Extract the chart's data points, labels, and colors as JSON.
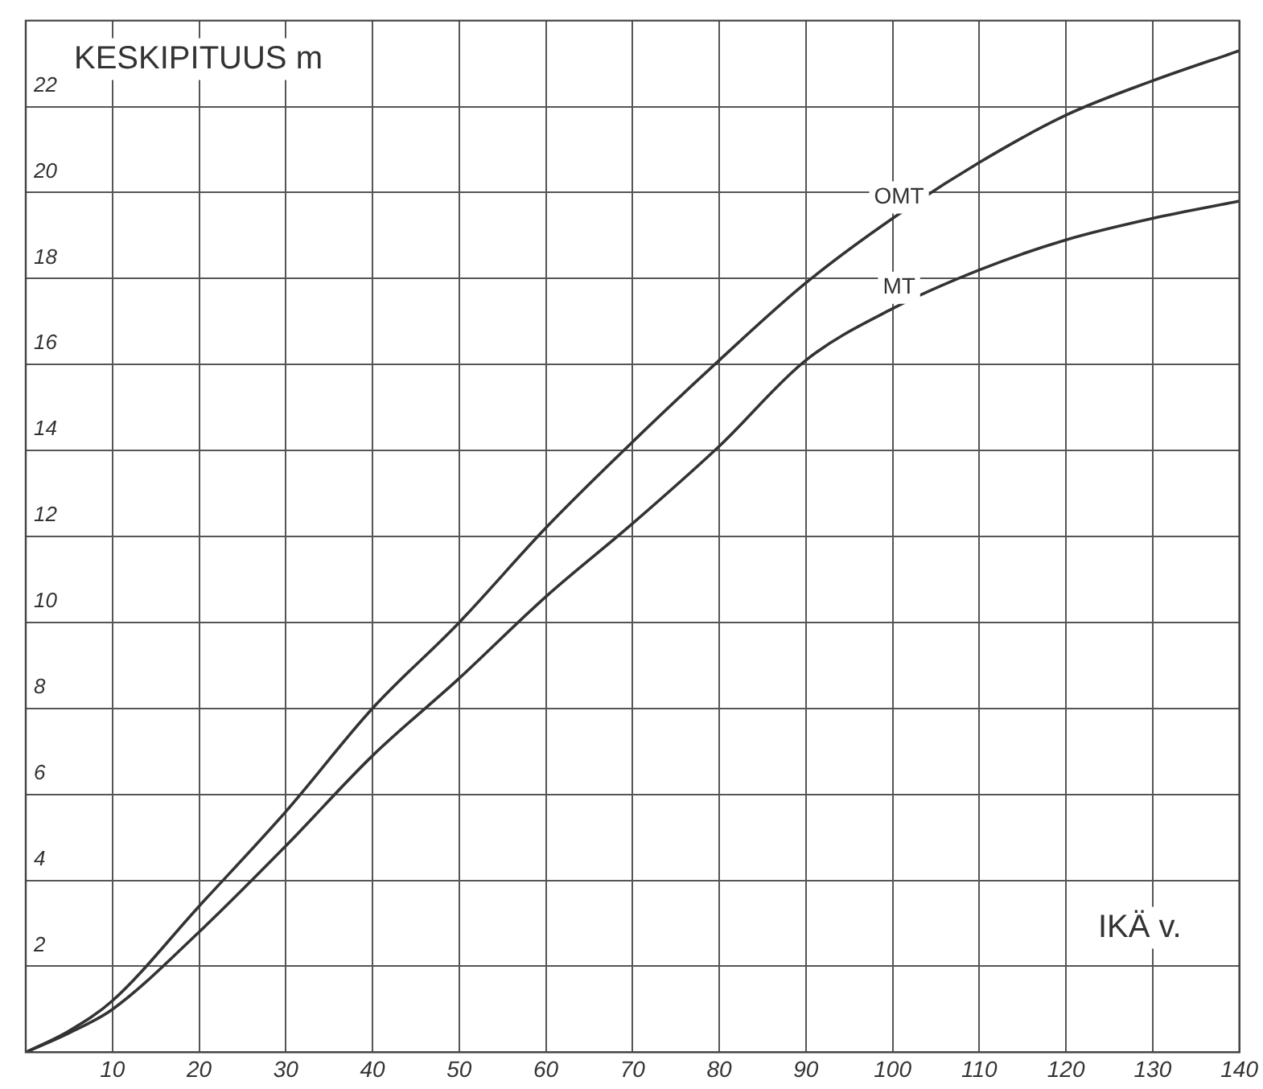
{
  "chart_data": {
    "type": "line",
    "xlabel": "IKÄ v.",
    "ylabel": "KESKIPITUUS m",
    "x": [
      0,
      5,
      10,
      20,
      30,
      40,
      50,
      60,
      70,
      80,
      90,
      100,
      110,
      120,
      130,
      140
    ],
    "series": [
      {
        "name": "OMT",
        "color": "#333333",
        "values": [
          0,
          0.5,
          1.2,
          3.4,
          5.6,
          8.0,
          10.0,
          12.2,
          14.2,
          16.1,
          17.9,
          19.4,
          20.7,
          21.8,
          22.6,
          23.3
        ]
      },
      {
        "name": "MT",
        "color": "#333333",
        "values": [
          0,
          0.45,
          1.0,
          2.8,
          4.8,
          6.9,
          8.7,
          10.6,
          12.3,
          14.1,
          16.1,
          17.3,
          18.2,
          18.9,
          19.4,
          19.8
        ]
      }
    ],
    "xlim": [
      0,
      140
    ],
    "xticks": [
      10,
      20,
      30,
      40,
      50,
      60,
      70,
      80,
      90,
      100,
      110,
      120,
      130,
      140
    ],
    "ylim": [
      0,
      24
    ],
    "yticks": [
      2,
      4,
      6,
      8,
      10,
      12,
      14,
      16,
      18,
      20,
      22
    ],
    "grid": true,
    "legend": false,
    "marker": "none",
    "line_style": "solid"
  }
}
